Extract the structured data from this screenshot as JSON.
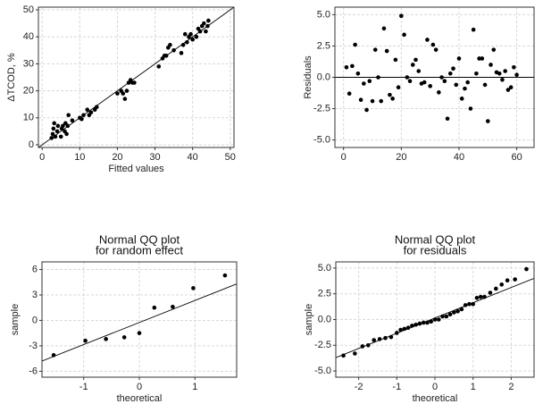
{
  "chart_data": [
    {
      "type": "scatter",
      "xlabel": "Fitted values",
      "ylabel": "ΔTCOD, %",
      "x": [
        2.5,
        2.8,
        3,
        3.2,
        3.5,
        4,
        4.2,
        5,
        5.2,
        5.5,
        6,
        6.2,
        6.5,
        6.8,
        7,
        8,
        10,
        10.5,
        11,
        12,
        12.5,
        13,
        14,
        14.5,
        20,
        21,
        21.5,
        22,
        22.5,
        23,
        23.5,
        24,
        24.5,
        31,
        32,
        32.5,
        33,
        33.5,
        34,
        35,
        37,
        37.5,
        38,
        38.5,
        39,
        39.5,
        40,
        41,
        41.5,
        42,
        42.5,
        43,
        43.5,
        44,
        44.2
      ],
      "values": [
        2.5,
        4,
        6,
        8,
        3,
        5,
        7,
        3,
        6,
        7,
        5,
        8,
        4,
        7,
        11,
        9,
        10,
        9.5,
        11,
        13,
        11,
        12,
        13,
        14,
        19,
        20,
        19,
        17,
        20,
        23,
        24,
        23,
        23,
        29,
        32,
        33,
        33,
        36,
        37,
        35,
        34,
        37,
        41,
        38,
        40,
        41,
        39,
        40,
        43,
        42,
        44,
        45,
        42,
        44,
        46
      ],
      "xlim": [
        -1,
        51
      ],
      "ylim": [
        -1,
        51
      ],
      "xticks": [
        0,
        10,
        20,
        30,
        40,
        50
      ],
      "yticks": [
        0,
        10,
        20,
        30,
        40,
        50
      ],
      "fit_line": {
        "x": [
          -1,
          51
        ],
        "values": [
          -1,
          51
        ]
      },
      "grid": true,
      "color": "#000000"
    },
    {
      "type": "scatter",
      "ylabel": "Residuals",
      "x": [
        1,
        2,
        3,
        4,
        5,
        6,
        7,
        8,
        9,
        10,
        11,
        12,
        13,
        14,
        15,
        16,
        17,
        18,
        19,
        20,
        21,
        22,
        23,
        24,
        25,
        26,
        27,
        28,
        29,
        30,
        31,
        32,
        33,
        34,
        35,
        36,
        37,
        38,
        39,
        40,
        41,
        42,
        43,
        44,
        45,
        46,
        47,
        48,
        49,
        50,
        51,
        52,
        53,
        54,
        55,
        56,
        57,
        58,
        59,
        60
      ],
      "values": [
        0.8,
        -1.3,
        0.9,
        2.6,
        0.3,
        -1.8,
        -0.5,
        -2.6,
        -0.3,
        -1.9,
        2.2,
        0.0,
        -1.9,
        3.9,
        2.1,
        -1.4,
        -1.7,
        1.4,
        -0.8,
        4.9,
        3.4,
        0.0,
        -0.3,
        1.0,
        1.4,
        0.5,
        -0.5,
        -0.4,
        3.0,
        -0.7,
        2.6,
        2.2,
        -1.2,
        0.0,
        -0.3,
        -3.3,
        0.3,
        0.7,
        -0.6,
        1.5,
        -1.7,
        -0.9,
        -0.4,
        -2.5,
        3.8,
        0.3,
        1.5,
        1.5,
        -0.6,
        -3.5,
        1.0,
        2.2,
        0.4,
        0.3,
        -0.2,
        0.5,
        -1.0,
        -0.8,
        0.8,
        0.2
      ],
      "xlim": [
        -3,
        66
      ],
      "ylim": [
        -5.6,
        5.6
      ],
      "xticks": [
        0,
        20,
        40,
        60
      ],
      "yticks": [
        {
          "value": 5,
          "label": "5.0"
        },
        {
          "value": 2.5,
          "label": "2.5"
        },
        {
          "value": 0,
          "label": "0.0"
        },
        {
          "value": -2.5,
          "label": "-2.5"
        },
        {
          "value": -5,
          "label": "-5.0"
        }
      ],
      "hline": 0,
      "grid": true,
      "color": "#000000"
    },
    {
      "type": "scatter",
      "title": "Normal QQ plot",
      "subtitle": "for random effect",
      "xlabel": "theoretical",
      "ylabel": "sample",
      "x": [
        -1.54,
        -0.97,
        -0.6,
        -0.27,
        0,
        0.27,
        0.6,
        0.97,
        1.54
      ],
      "values": [
        -4.1,
        -2.4,
        -2.2,
        -2.0,
        -1.5,
        1.5,
        1.6,
        3.8,
        5.3
      ],
      "xlim": [
        -1.75,
        1.75
      ],
      "ylim": [
        -6.7,
        6.9
      ],
      "xticks": [
        -1,
        0,
        1
      ],
      "yticks": [
        6,
        3,
        0,
        -3,
        -6
      ],
      "fit_line": {
        "x": [
          -1.75,
          1.75
        ],
        "values": [
          -4.8,
          4.3
        ]
      },
      "grid": true,
      "color": "#000000"
    },
    {
      "type": "scatter",
      "title": "Normal QQ plot",
      "subtitle": "for residuals",
      "xlabel": "theoretical",
      "ylabel": "sample",
      "x": [
        -2.4,
        -2.1,
        -1.9,
        -1.75,
        -1.6,
        -1.45,
        -1.3,
        -1.15,
        -1.0,
        -0.9,
        -0.8,
        -0.7,
        -0.6,
        -0.5,
        -0.4,
        -0.3,
        -0.2,
        -0.1,
        0,
        0.1,
        0.2,
        0.3,
        0.4,
        0.5,
        0.6,
        0.7,
        0.8,
        0.9,
        1.0,
        1.1,
        1.2,
        1.3,
        1.45,
        1.6,
        1.75,
        1.9,
        2.1,
        2.4
      ],
      "values": [
        -3.5,
        -3.3,
        -2.6,
        -2.5,
        -2.0,
        -1.9,
        -1.8,
        -1.7,
        -1.3,
        -1.0,
        -0.9,
        -0.8,
        -0.6,
        -0.5,
        -0.4,
        -0.3,
        -0.3,
        -0.2,
        0,
        0,
        0.3,
        0.3,
        0.5,
        0.7,
        0.8,
        1.0,
        1.4,
        1.5,
        1.5,
        2.1,
        2.2,
        2.2,
        2.6,
        3.0,
        3.4,
        3.8,
        3.9,
        4.9
      ],
      "xlim": [
        -2.6,
        2.6
      ],
      "ylim": [
        -5.6,
        5.6
      ],
      "xticks": [
        -2,
        -1,
        0,
        1,
        2
      ],
      "yticks": [
        {
          "value": 5,
          "label": "5.0"
        },
        {
          "value": 2.5,
          "label": "2.5"
        },
        {
          "value": 0,
          "label": "0.0"
        },
        {
          "value": -2.5,
          "label": "-2.5"
        },
        {
          "value": -5,
          "label": "-5.0"
        }
      ],
      "fit_line": {
        "x": [
          -2.6,
          2.6
        ],
        "values": [
          -3.7,
          4.0
        ]
      },
      "grid": true,
      "color": "#000000"
    }
  ]
}
